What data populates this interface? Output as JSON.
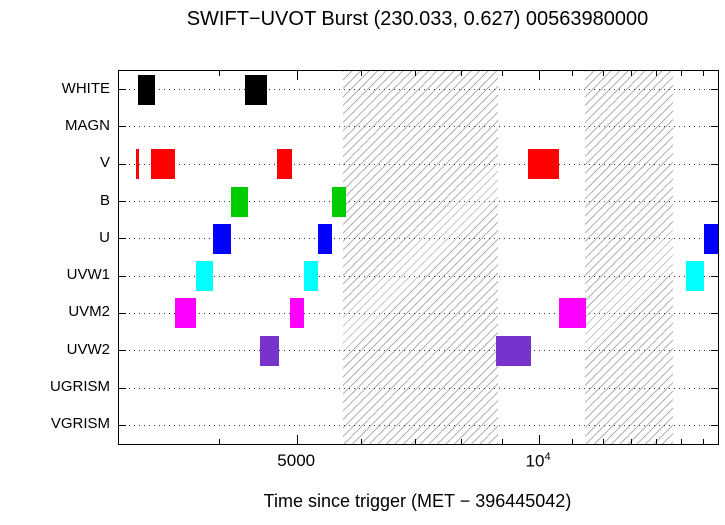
{
  "title": "SWIFT−UVOT Burst (230.033, 0.627) 00563980000",
  "xlabel": "Time since trigger (MET − 396445042)",
  "chart_data": {
    "type": "timeline",
    "x_scale": "log",
    "x_range": [
      3000,
      16700
    ],
    "x_major_ticks": [
      {
        "value": 5000,
        "label": "5000"
      },
      {
        "value": 10000,
        "label": "10",
        "sup": "4"
      }
    ],
    "x_minor_ticks": [
      4000,
      6000,
      7000,
      8000,
      9000,
      11000,
      12000,
      13000,
      14000,
      15000,
      16000
    ],
    "rows": [
      "WHITE",
      "MAGN",
      "V",
      "B",
      "U",
      "UVW1",
      "UVM2",
      "UVW2",
      "UGRISM",
      "VGRISM"
    ],
    "series": [
      {
        "filter": "WHITE",
        "color": "#000000",
        "intervals": [
          [
            3170,
            3330
          ],
          [
            4310,
            4580
          ]
        ]
      },
      {
        "filter": "MAGN",
        "color": "#000000",
        "intervals": []
      },
      {
        "filter": "V",
        "color": "#ff0000",
        "intervals": [
          [
            3150,
            3175
          ],
          [
            3290,
            3520
          ],
          [
            4720,
            4930
          ],
          [
            9700,
            10600
          ]
        ]
      },
      {
        "filter": "B",
        "color": "#00cc00",
        "intervals": [
          [
            4130,
            4340
          ],
          [
            5530,
            5750
          ]
        ]
      },
      {
        "filter": "U",
        "color": "#0000ff",
        "intervals": [
          [
            3930,
            4130
          ],
          [
            5310,
            5530
          ],
          [
            16050,
            16700
          ]
        ]
      },
      {
        "filter": "UVW1",
        "color": "#00ffff",
        "intervals": [
          [
            3740,
            3930
          ],
          [
            5100,
            5310
          ],
          [
            15250,
            16030
          ]
        ]
      },
      {
        "filter": "UVM2",
        "color": "#ff00ff",
        "intervals": [
          [
            3520,
            3740
          ],
          [
            4900,
            5100
          ],
          [
            10600,
            11450
          ]
        ]
      },
      {
        "filter": "UVW2",
        "color": "#7733cc",
        "intervals": [
          [
            4500,
            4750
          ],
          [
            8850,
            9780
          ]
        ]
      },
      {
        "filter": "UGRISM",
        "color": "#000000",
        "intervals": []
      },
      {
        "filter": "VGRISM",
        "color": "#000000",
        "intervals": []
      }
    ],
    "hatched_regions": [
      [
        5700,
        8900
      ],
      [
        11400,
        14700
      ]
    ]
  }
}
